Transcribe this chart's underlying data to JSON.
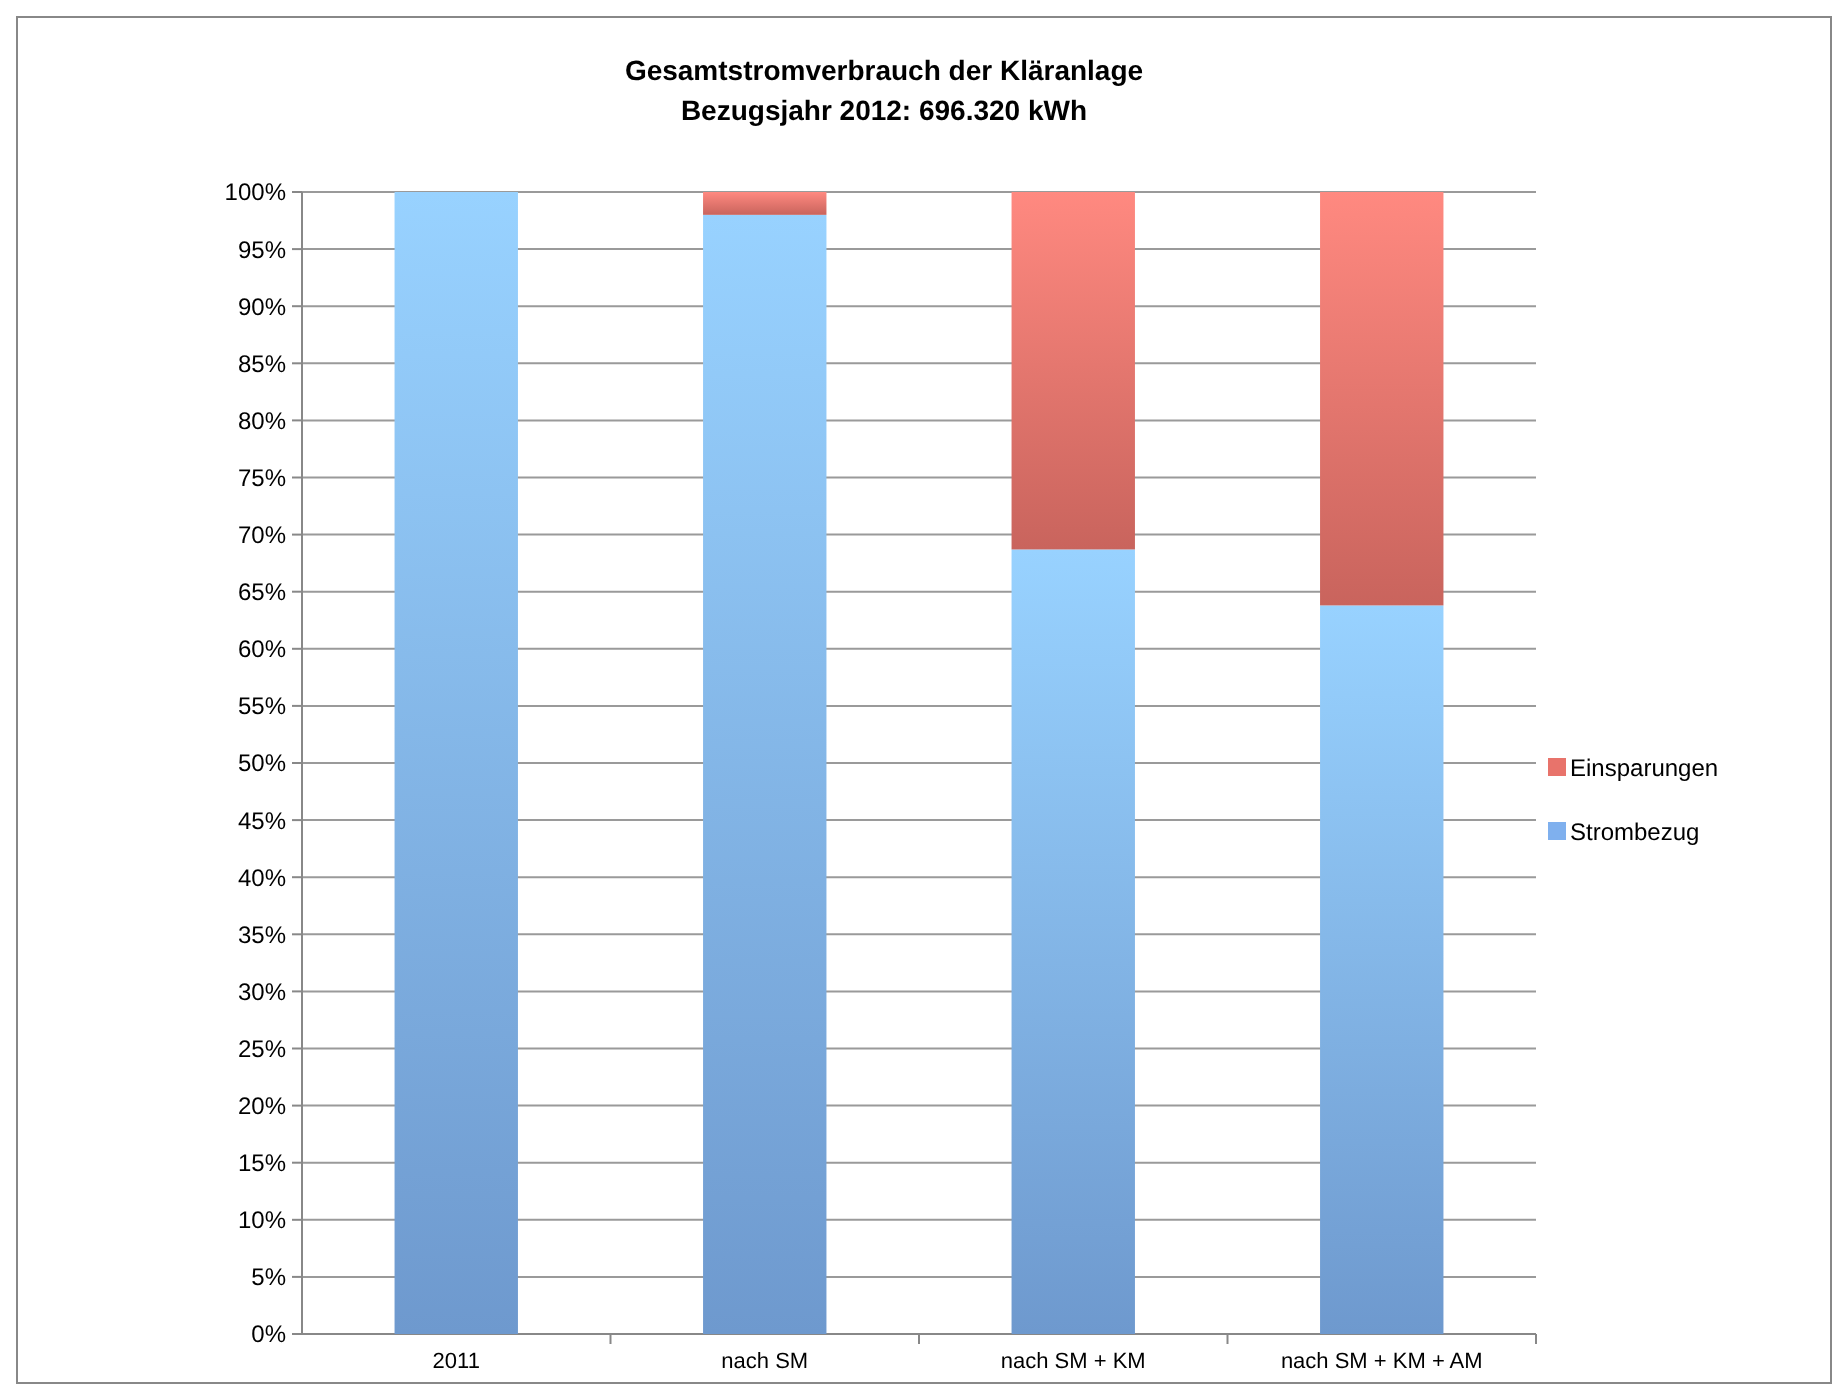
{
  "chart_data": {
    "type": "bar",
    "title": "Gesamtstromverbrauch der Kläranlage",
    "subtitle": "Bezugsjahr 2012: 696.320 kWh",
    "categories": [
      "2011",
      "nach SM",
      "nach SM + KM",
      "nach SM + KM + AM"
    ],
    "stacked": true,
    "series": [
      {
        "name": "Strombezug",
        "color": "#7fb0ee",
        "values": [
          100,
          98,
          68.7,
          63.8
        ]
      },
      {
        "name": "Einsparungen",
        "color": "#e8736b",
        "values": [
          0,
          2,
          31.3,
          36.2
        ]
      }
    ],
    "ylim": [
      0,
      100
    ],
    "yticks": [
      {
        "value": 0,
        "label": "0%"
      },
      {
        "value": 5,
        "label": "5%"
      },
      {
        "value": 10,
        "label": "10%"
      },
      {
        "value": 15,
        "label": "15%"
      },
      {
        "value": 20,
        "label": "20%"
      },
      {
        "value": 25,
        "label": "25%"
      },
      {
        "value": 30,
        "label": "30%"
      },
      {
        "value": 35,
        "label": "35%"
      },
      {
        "value": 40,
        "label": "40%"
      },
      {
        "value": 45,
        "label": "45%"
      },
      {
        "value": 50,
        "label": "50%"
      },
      {
        "value": 55,
        "label": "55%"
      },
      {
        "value": 60,
        "label": "60%"
      },
      {
        "value": 65,
        "label": "65%"
      },
      {
        "value": 70,
        "label": "70%"
      },
      {
        "value": 75,
        "label": "75%"
      },
      {
        "value": 80,
        "label": "80%"
      },
      {
        "value": 85,
        "label": "85%"
      },
      {
        "value": 90,
        "label": "90%"
      },
      {
        "value": 95,
        "label": "95%"
      },
      {
        "value": 100,
        "label": "100%"
      }
    ],
    "grid": "y",
    "legend": "right"
  }
}
